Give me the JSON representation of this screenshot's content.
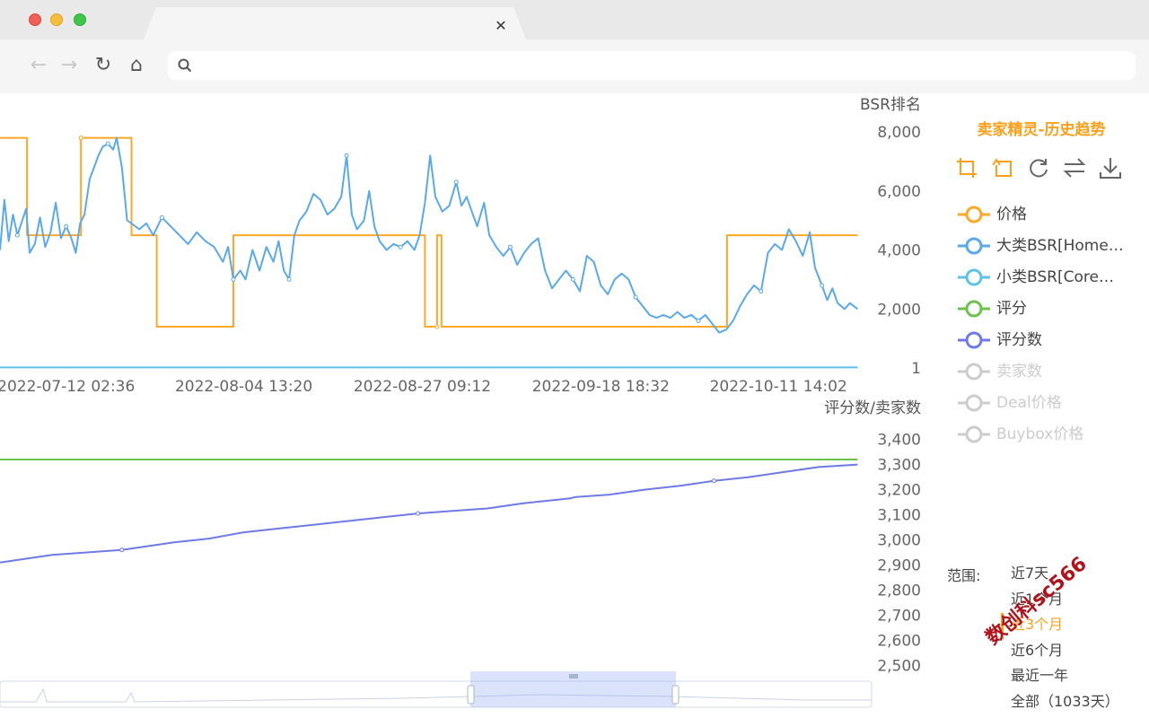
{
  "browser": {
    "tab_close": "✕",
    "url": "",
    "nav": {
      "back": "←",
      "forward": "→",
      "reload": "↻",
      "home": "⌂"
    }
  },
  "panel": {
    "title": "卖家精灵-历史趋势",
    "tools": [
      "crop-icon",
      "undo-crop-icon",
      "refresh-icon",
      "swap-icon",
      "download-icon"
    ],
    "legend": [
      {
        "label": "价格",
        "color": "#ffa726",
        "active": true
      },
      {
        "label": "大类BSR[Home…",
        "color": "#5aa9ec",
        "active": true
      },
      {
        "label": "小类BSR[Core…",
        "color": "#5ec2e8",
        "active": true
      },
      {
        "label": "评分",
        "color": "#6cc24a",
        "active": true
      },
      {
        "label": "评分数",
        "color": "#6f7ae6",
        "active": true
      },
      {
        "label": "卖家数",
        "color": "#cccccc",
        "active": false
      },
      {
        "label": "Deal价格",
        "color": "#cccccc",
        "active": false
      },
      {
        "label": "Buybox价格",
        "color": "#cccccc",
        "active": false
      }
    ],
    "range_label": "范围:",
    "range_options": [
      "近7天",
      "近1个月",
      "近3个月",
      "近6个月",
      "最近一年",
      "全部（1033天）"
    ],
    "range_active": 2,
    "watermark": "数创科sc566"
  },
  "chart_data": [
    {
      "type": "line",
      "ylabel": "BSR排名",
      "y_ticks": [
        "8,000",
        "6,000",
        "4,000",
        "2,000",
        "1"
      ],
      "ylim": [
        1,
        8000
      ],
      "x_ticks": [
        "2022-07-12 02:36",
        "2022-08-04 13:20",
        "2022-08-27 09:12",
        "2022-09-18 18:32",
        "2022-10-11 14:02"
      ],
      "grid": false,
      "series": [
        {
          "name": "价格",
          "color": "#ffa726",
          "points": [
            [
              0.0,
              7800
            ],
            [
              0.031,
              7800
            ],
            [
              0.031,
              4500
            ],
            [
              0.093,
              4500
            ],
            [
              0.093,
              7800
            ],
            [
              0.151,
              7800
            ],
            [
              0.151,
              4500
            ],
            [
              0.18,
              4500
            ],
            [
              0.18,
              1400
            ],
            [
              0.268,
              1400
            ],
            [
              0.268,
              4500
            ],
            [
              0.488,
              4500
            ],
            [
              0.488,
              1400
            ],
            [
              0.502,
              1400
            ],
            [
              0.502,
              4500
            ],
            [
              0.507,
              4500
            ],
            [
              0.507,
              1400
            ],
            [
              0.835,
              1400
            ],
            [
              0.835,
              4500
            ],
            [
              0.985,
              4500
            ]
          ]
        },
        {
          "name": "大类BSR[Home…",
          "color": "#5aa9ec",
          "points": [
            [
              0.0,
              4000
            ],
            [
              0.005,
              5700
            ],
            [
              0.01,
              4300
            ],
            [
              0.015,
              5200
            ],
            [
              0.02,
              4500
            ],
            [
              0.03,
              5400
            ],
            [
              0.034,
              3900
            ],
            [
              0.04,
              4200
            ],
            [
              0.046,
              5100
            ],
            [
              0.052,
              4100
            ],
            [
              0.058,
              4600
            ],
            [
              0.064,
              5600
            ],
            [
              0.07,
              4400
            ],
            [
              0.076,
              4800
            ],
            [
              0.082,
              4400
            ],
            [
              0.087,
              3900
            ],
            [
              0.092,
              4900
            ],
            [
              0.097,
              5200
            ],
            [
              0.103,
              6400
            ],
            [
              0.108,
              6800
            ],
            [
              0.113,
              7200
            ],
            [
              0.118,
              7500
            ],
            [
              0.124,
              7600
            ],
            [
              0.13,
              7400
            ],
            [
              0.134,
              7800
            ],
            [
              0.14,
              6800
            ],
            [
              0.146,
              5000
            ],
            [
              0.151,
              4900
            ],
            [
              0.16,
              4700
            ],
            [
              0.168,
              4900
            ],
            [
              0.176,
              4500
            ],
            [
              0.186,
              5100
            ],
            [
              0.196,
              4800
            ],
            [
              0.206,
              4500
            ],
            [
              0.216,
              4200
            ],
            [
              0.226,
              4600
            ],
            [
              0.236,
              4300
            ],
            [
              0.246,
              4100
            ],
            [
              0.256,
              3600
            ],
            [
              0.262,
              4100
            ],
            [
              0.268,
              3000
            ],
            [
              0.276,
              3300
            ],
            [
              0.282,
              3000
            ],
            [
              0.29,
              4000
            ],
            [
              0.298,
              3300
            ],
            [
              0.306,
              4100
            ],
            [
              0.314,
              3600
            ],
            [
              0.32,
              4300
            ],
            [
              0.326,
              3300
            ],
            [
              0.332,
              3000
            ],
            [
              0.338,
              4500
            ],
            [
              0.344,
              5000
            ],
            [
              0.352,
              5300
            ],
            [
              0.36,
              5900
            ],
            [
              0.368,
              5700
            ],
            [
              0.376,
              5200
            ],
            [
              0.384,
              5400
            ],
            [
              0.392,
              5800
            ],
            [
              0.398,
              7200
            ],
            [
              0.404,
              5200
            ],
            [
              0.41,
              4700
            ],
            [
              0.418,
              5000
            ],
            [
              0.424,
              6000
            ],
            [
              0.43,
              4800
            ],
            [
              0.436,
              4300
            ],
            [
              0.444,
              4000
            ],
            [
              0.452,
              4200
            ],
            [
              0.46,
              4100
            ],
            [
              0.468,
              4300
            ],
            [
              0.476,
              4000
            ],
            [
              0.482,
              4500
            ],
            [
              0.488,
              5600
            ],
            [
              0.494,
              7200
            ],
            [
              0.5,
              5800
            ],
            [
              0.508,
              5300
            ],
            [
              0.516,
              5500
            ],
            [
              0.524,
              6300
            ],
            [
              0.53,
              5500
            ],
            [
              0.536,
              5800
            ],
            [
              0.542,
              5300
            ],
            [
              0.548,
              4800
            ],
            [
              0.556,
              5600
            ],
            [
              0.562,
              4500
            ],
            [
              0.57,
              4100
            ],
            [
              0.578,
              3800
            ],
            [
              0.586,
              4100
            ],
            [
              0.594,
              3500
            ],
            [
              0.602,
              3900
            ],
            [
              0.61,
              4200
            ],
            [
              0.618,
              4400
            ],
            [
              0.626,
              3300
            ],
            [
              0.634,
              2700
            ],
            [
              0.642,
              3000
            ],
            [
              0.65,
              3300
            ],
            [
              0.658,
              3000
            ],
            [
              0.666,
              2600
            ],
            [
              0.674,
              3800
            ],
            [
              0.682,
              3600
            ],
            [
              0.69,
              2800
            ],
            [
              0.698,
              2500
            ],
            [
              0.706,
              3000
            ],
            [
              0.714,
              3200
            ],
            [
              0.722,
              3000
            ],
            [
              0.73,
              2400
            ],
            [
              0.738,
              2100
            ],
            [
              0.746,
              1800
            ],
            [
              0.754,
              1700
            ],
            [
              0.762,
              1800
            ],
            [
              0.77,
              1700
            ],
            [
              0.778,
              1900
            ],
            [
              0.786,
              1700
            ],
            [
              0.794,
              1800
            ],
            [
              0.802,
              1600
            ],
            [
              0.81,
              1800
            ],
            [
              0.818,
              1500
            ],
            [
              0.826,
              1200
            ],
            [
              0.834,
              1300
            ],
            [
              0.842,
              1600
            ],
            [
              0.85,
              2100
            ],
            [
              0.858,
              2500
            ],
            [
              0.866,
              2800
            ],
            [
              0.874,
              2600
            ],
            [
              0.882,
              3900
            ],
            [
              0.89,
              4200
            ],
            [
              0.898,
              4000
            ],
            [
              0.906,
              4700
            ],
            [
              0.914,
              4300
            ],
            [
              0.922,
              3800
            ],
            [
              0.93,
              4600
            ],
            [
              0.936,
              3400
            ],
            [
              0.944,
              2800
            ],
            [
              0.95,
              2300
            ],
            [
              0.956,
              2700
            ],
            [
              0.962,
              2200
            ],
            [
              0.97,
              2000
            ],
            [
              0.976,
              2200
            ],
            [
              0.985,
              2000
            ]
          ]
        },
        {
          "name": "小类BSR[Core…",
          "color": "#5ec2e8",
          "points": [
            [
              0.0,
              20
            ],
            [
              0.985,
              20
            ]
          ]
        }
      ]
    },
    {
      "type": "line",
      "ylabel": "评分数/卖家数",
      "y_ticks": [
        "3,400",
        "3,300",
        "3,200",
        "3,100",
        "3,000",
        "2,900",
        "2,800",
        "2,700",
        "2,600",
        "2,500"
      ],
      "ylim": [
        2480,
        3420
      ],
      "x_ticks": [],
      "grid": false,
      "series": [
        {
          "name": "评分",
          "color": "#6cc24a",
          "points": [
            [
              0.0,
              3320
            ],
            [
              0.655,
              3320
            ],
            [
              0.66,
              3320
            ],
            [
              0.985,
              3320
            ]
          ]
        },
        {
          "name": "评分数",
          "color": "#6f7ae6",
          "points": [
            [
              0.0,
              2910
            ],
            [
              0.03,
              2925
            ],
            [
              0.06,
              2940
            ],
            [
              0.1,
              2950
            ],
            [
              0.14,
              2960
            ],
            [
              0.17,
              2975
            ],
            [
              0.2,
              2990
            ],
            [
              0.24,
              3005
            ],
            [
              0.28,
              3030
            ],
            [
              0.32,
              3045
            ],
            [
              0.36,
              3060
            ],
            [
              0.4,
              3075
            ],
            [
              0.44,
              3090
            ],
            [
              0.48,
              3105
            ],
            [
              0.52,
              3115
            ],
            [
              0.56,
              3125
            ],
            [
              0.6,
              3145
            ],
            [
              0.655,
              3165
            ],
            [
              0.66,
              3170
            ],
            [
              0.7,
              3180
            ],
            [
              0.74,
              3200
            ],
            [
              0.78,
              3215
            ],
            [
              0.82,
              3235
            ],
            [
              0.86,
              3250
            ],
            [
              0.9,
              3270
            ],
            [
              0.94,
              3290
            ],
            [
              0.985,
              3300
            ]
          ]
        }
      ]
    }
  ]
}
